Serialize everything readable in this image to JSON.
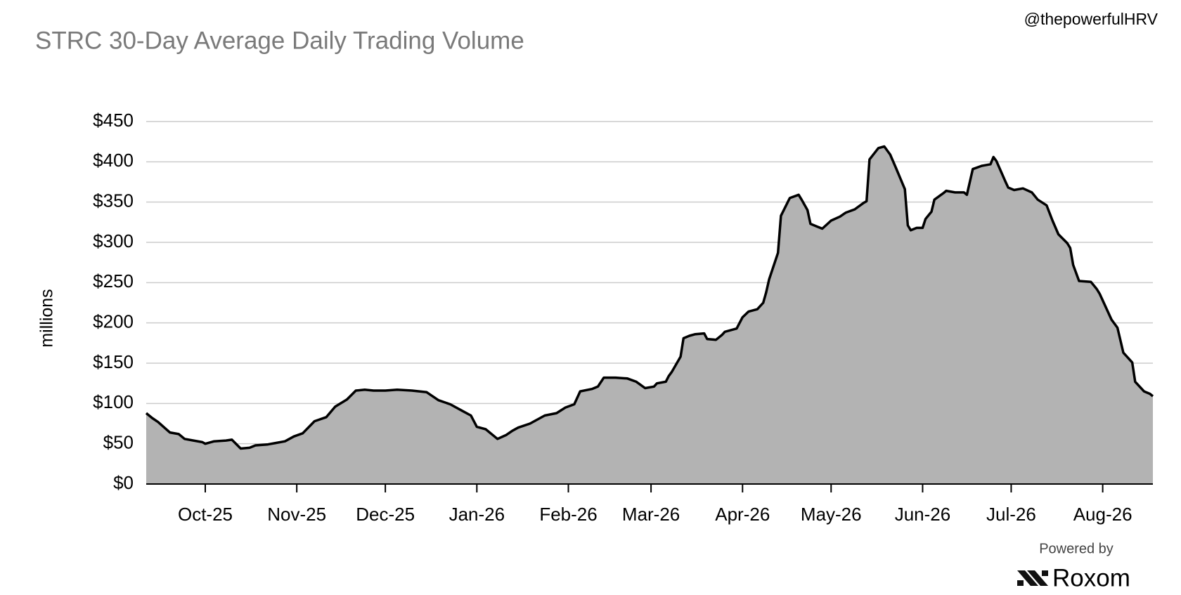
{
  "chart_data": {
    "type": "area",
    "title": "STRC 30-Day Average Daily Trading Volume",
    "watermark": "@thepowerfulHRV",
    "ylabel": "millions",
    "powered_by": "Powered by",
    "brand": "Roxom",
    "color": "#b3b3b3",
    "line_color": "#000000",
    "grid": true,
    "xlim": [
      -20,
      321
    ],
    "xticks": [
      {
        "value": 0,
        "label": "Oct-25"
      },
      {
        "value": 31,
        "label": "Nov-25"
      },
      {
        "value": 61,
        "label": "Dec-25"
      },
      {
        "value": 92,
        "label": "Jan-26"
      },
      {
        "value": 123,
        "label": "Feb-26"
      },
      {
        "value": 151,
        "label": "Mar-26"
      },
      {
        "value": 182,
        "label": "Apr-26"
      },
      {
        "value": 212,
        "label": "May-26"
      },
      {
        "value": 243,
        "label": "Jun-26"
      },
      {
        "value": 273,
        "label": "Jul-26"
      },
      {
        "value": 304,
        "label": "Aug-26"
      }
    ],
    "ylim": [
      0,
      450
    ],
    "yticks": [
      {
        "value": 0,
        "label": "$0"
      },
      {
        "value": 50,
        "label": "$50"
      },
      {
        "value": 100,
        "label": "$100"
      },
      {
        "value": 150,
        "label": "$150"
      },
      {
        "value": 200,
        "label": "$200"
      },
      {
        "value": 250,
        "label": "$250"
      },
      {
        "value": 300,
        "label": "$300"
      },
      {
        "value": 350,
        "label": "$350"
      },
      {
        "value": 400,
        "label": "$400"
      },
      {
        "value": 450,
        "label": "$450"
      }
    ],
    "x": [
      -20,
      -18,
      -16,
      -12,
      -9,
      -7,
      -4,
      -1,
      0,
      3,
      7,
      9,
      12,
      15,
      17,
      21,
      24,
      27,
      30,
      33,
      37,
      41,
      44,
      48,
      51,
      54,
      57,
      61,
      65,
      70,
      75,
      79,
      83,
      87,
      90,
      92,
      95,
      99,
      102,
      104,
      106,
      110,
      112,
      115,
      119,
      122,
      125,
      127,
      131,
      133,
      135,
      139,
      143,
      146,
      149,
      152,
      153,
      156,
      157,
      158,
      161,
      162,
      164,
      166,
      169,
      170,
      173,
      175,
      176,
      180,
      182,
      184,
      187,
      189,
      190,
      191,
      194,
      195,
      198,
      201,
      202,
      204,
      205,
      207,
      209,
      212,
      215,
      217,
      220,
      223,
      224,
      225,
      228,
      230,
      232,
      234,
      237,
      238,
      239,
      241,
      243,
      244,
      246,
      247,
      250,
      251,
      254,
      257,
      258,
      260,
      263,
      266,
      267,
      268,
      271,
      272,
      274,
      277,
      280,
      282,
      285,
      287,
      289,
      292,
      293,
      294,
      296,
      300,
      302,
      303,
      307,
      309,
      311,
      314,
      315,
      318,
      320,
      321
    ],
    "values": [
      88,
      82,
      77,
      64,
      62,
      56,
      54,
      52,
      50,
      53,
      54,
      55,
      44,
      45,
      48,
      49,
      51,
      53,
      59,
      63,
      78,
      83,
      96,
      105,
      116,
      117,
      116,
      116,
      117,
      116,
      114,
      104,
      99,
      91,
      85,
      71,
      68,
      56,
      61,
      66,
      70,
      75,
      79,
      85,
      88,
      95,
      99,
      115,
      118,
      121,
      132,
      132,
      131,
      127,
      119,
      121,
      125,
      127,
      134,
      139,
      158,
      181,
      184,
      186,
      187,
      180,
      179,
      185,
      189,
      193,
      207,
      214,
      217,
      225,
      238,
      254,
      287,
      333,
      355,
      359,
      353,
      340,
      323,
      320,
      317,
      327,
      332,
      337,
      341,
      349,
      351,
      403,
      417,
      419,
      409,
      392,
      366,
      321,
      315,
      318,
      318,
      329,
      338,
      353,
      361,
      364,
      362,
      362,
      359,
      391,
      395,
      397,
      406,
      401,
      376,
      368,
      365,
      367,
      362,
      353,
      346,
      327,
      310,
      299,
      293,
      272,
      252,
      251,
      242,
      236,
      204,
      194,
      163,
      151,
      127,
      115,
      112,
      109
    ]
  }
}
